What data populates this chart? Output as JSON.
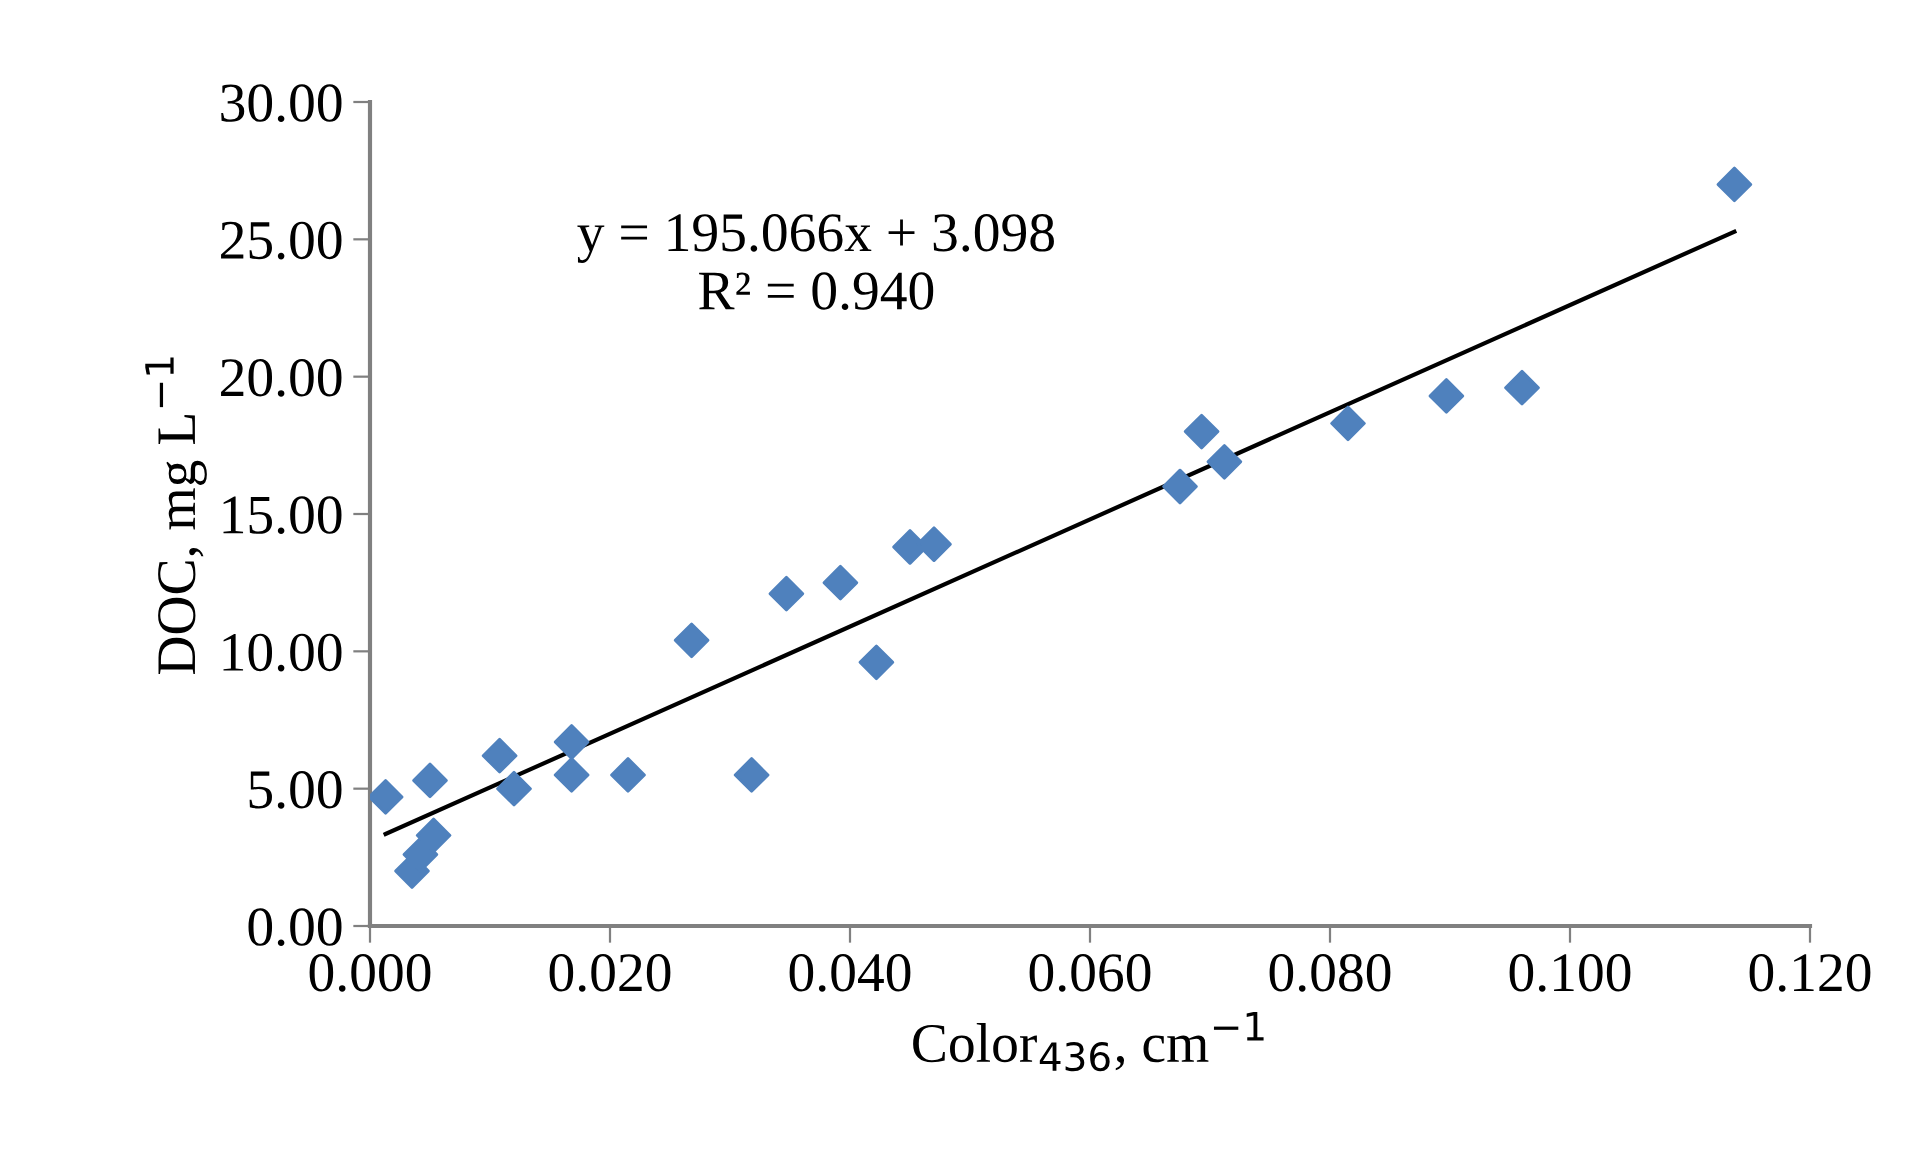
{
  "chart_data": {
    "type": "scatter",
    "xlabel": "Color$_{436}$, cm$^{−1}$",
    "ylabel": "DOC, mg L$^{−1}$",
    "annotations": [
      "y = 195.066x + 3.098\nR² = 0.940"
    ],
    "xlim": [
      0,
      0.12
    ],
    "ylim": [
      0,
      30
    ],
    "xticks": [
      {
        "value": 0,
        "label": "0.000"
      },
      {
        "value": 0.02,
        "label": "0.020"
      },
      {
        "value": 0.04,
        "label": "0.040"
      },
      {
        "value": 0.06,
        "label": "0.060"
      },
      {
        "value": 0.08,
        "label": "0.080"
      },
      {
        "value": 0.1,
        "label": "0.100"
      },
      {
        "value": 0.12,
        "label": "0.120"
      }
    ],
    "yticks": [
      {
        "value": 0,
        "label": "0.00"
      },
      {
        "value": 5,
        "label": "5.00"
      },
      {
        "value": 10,
        "label": "10.00"
      },
      {
        "value": 15,
        "label": "15.00"
      },
      {
        "value": 20,
        "label": "20.00"
      },
      {
        "value": 25,
        "label": "25.00"
      },
      {
        "value": 30,
        "label": "30.00"
      }
    ],
    "grid": false,
    "legend": false,
    "series": [
      {
        "marker": "diamond",
        "color": "#4f81bd",
        "x": [
          0.0013,
          0.005,
          0.0035,
          0.0042,
          0.0053,
          0.0108,
          0.012,
          0.0168,
          0.0168,
          0.0215,
          0.0268,
          0.0318,
          0.0347,
          0.0392,
          0.0422,
          0.045,
          0.047,
          0.0675,
          0.0693,
          0.0712,
          0.0815,
          0.0897,
          0.096,
          0.1137
        ],
        "values": [
          4.7,
          5.3,
          2.0,
          2.6,
          3.3,
          6.2,
          5.0,
          6.7,
          5.5,
          5.5,
          10.4,
          5.5,
          12.1,
          12.5,
          9.6,
          13.8,
          13.9,
          16.0,
          18.0,
          16.9,
          18.3,
          19.3,
          19.6,
          27.0
        ]
      },
      {
        "type": "line",
        "marker": "none",
        "line_style": "solid",
        "color": "#000000",
        "x": [
          0.0013,
          0.1137
        ],
        "values": [
          3.35,
          25.28
        ]
      }
    ]
  }
}
